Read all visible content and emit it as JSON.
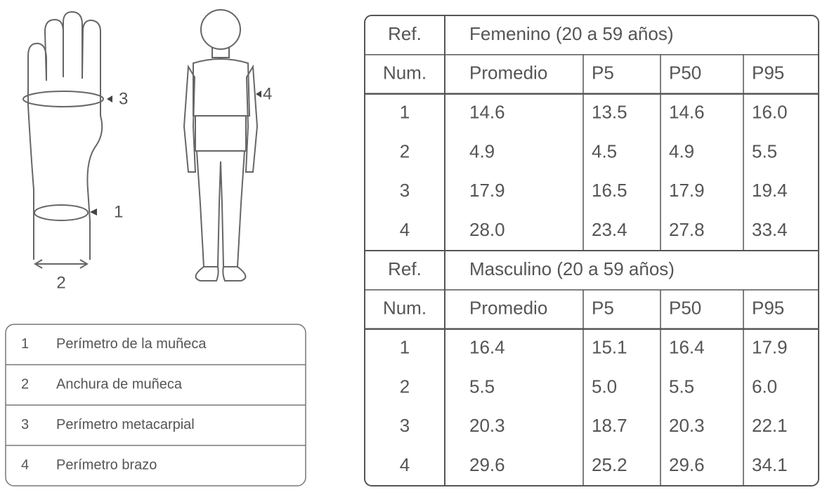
{
  "figure": {
    "hand_labels": {
      "metacarpal": "3",
      "wrist_perimeter": "1",
      "wrist_width": "2"
    },
    "body_label": "4"
  },
  "legend": [
    {
      "num": "1",
      "text": "Perímetro de la muñeca"
    },
    {
      "num": "2",
      "text": "Anchura de muñeca"
    },
    {
      "num": "3",
      "text": "Perímetro metacarpial"
    },
    {
      "num": "4",
      "text": "Perímetro brazo"
    }
  ],
  "table": {
    "sections": [
      {
        "ref": "Ref.",
        "title": "Femenino (20 a 59 años)",
        "header": [
          "Num.",
          "Promedio",
          "P5",
          "P50",
          "P95"
        ],
        "rows": [
          [
            "1",
            "14.6",
            "13.5",
            "14.6",
            "16.0"
          ],
          [
            "2",
            "4.9",
            "4.5",
            "4.9",
            "5.5"
          ],
          [
            "3",
            "17.9",
            "16.5",
            "17.9",
            "19.4"
          ],
          [
            "4",
            "28.0",
            "23.4",
            "27.8",
            "33.4"
          ]
        ]
      },
      {
        "ref": "Ref.",
        "title": "Masculino (20 a 59 años)",
        "header": [
          "Num.",
          "Promedio",
          "P5",
          "P50",
          "P95"
        ],
        "rows": [
          [
            "1",
            "16.4",
            "15.1",
            "16.4",
            "17.9"
          ],
          [
            "2",
            "5.5",
            "5.0",
            "5.5",
            "6.0"
          ],
          [
            "3",
            "20.3",
            "18.7",
            "20.3",
            "22.1"
          ],
          [
            "4",
            "29.6",
            "25.2",
            "29.6",
            "34.1"
          ]
        ]
      }
    ]
  }
}
